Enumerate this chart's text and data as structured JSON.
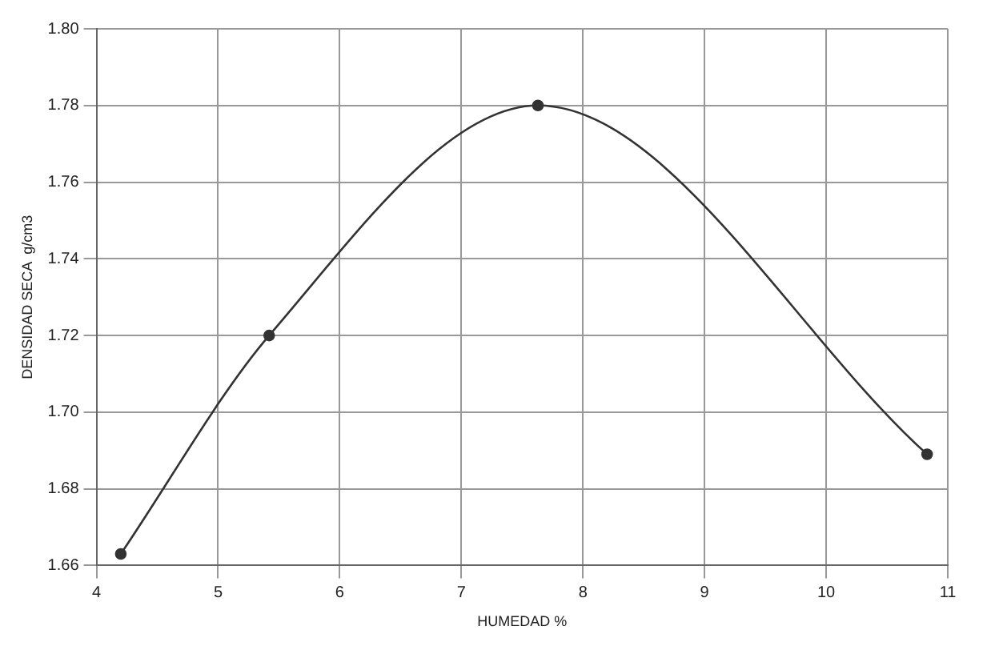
{
  "chart_data": {
    "type": "line",
    "xlabel": "HUMEDAD %",
    "ylabel": "DENSIDAD SECA  g/cm3",
    "x": [
      4.2,
      5.42,
      7.63,
      10.83
    ],
    "series": [
      {
        "color": "#333333",
        "values": [
          1.663,
          1.72,
          1.78,
          1.689
        ]
      }
    ],
    "marker": "circle",
    "line_style": "solid",
    "xlim": [
      4,
      11
    ],
    "xticks": [
      4,
      5,
      6,
      7,
      8,
      9,
      10,
      11
    ],
    "ylim": [
      1.66,
      1.8
    ],
    "yticks": [
      {
        "value": 1.66,
        "label": "1.66"
      },
      {
        "value": 1.68,
        "label": "1.68"
      },
      {
        "value": 1.7,
        "label": "1.70"
      },
      {
        "value": 1.72,
        "label": "1.72"
      },
      {
        "value": 1.74,
        "label": "1.74"
      },
      {
        "value": 1.76,
        "label": "1.76"
      },
      {
        "value": 1.78,
        "label": "1.78"
      },
      {
        "value": 1.8,
        "label": "1.80"
      }
    ],
    "grid": true,
    "legend": false
  }
}
